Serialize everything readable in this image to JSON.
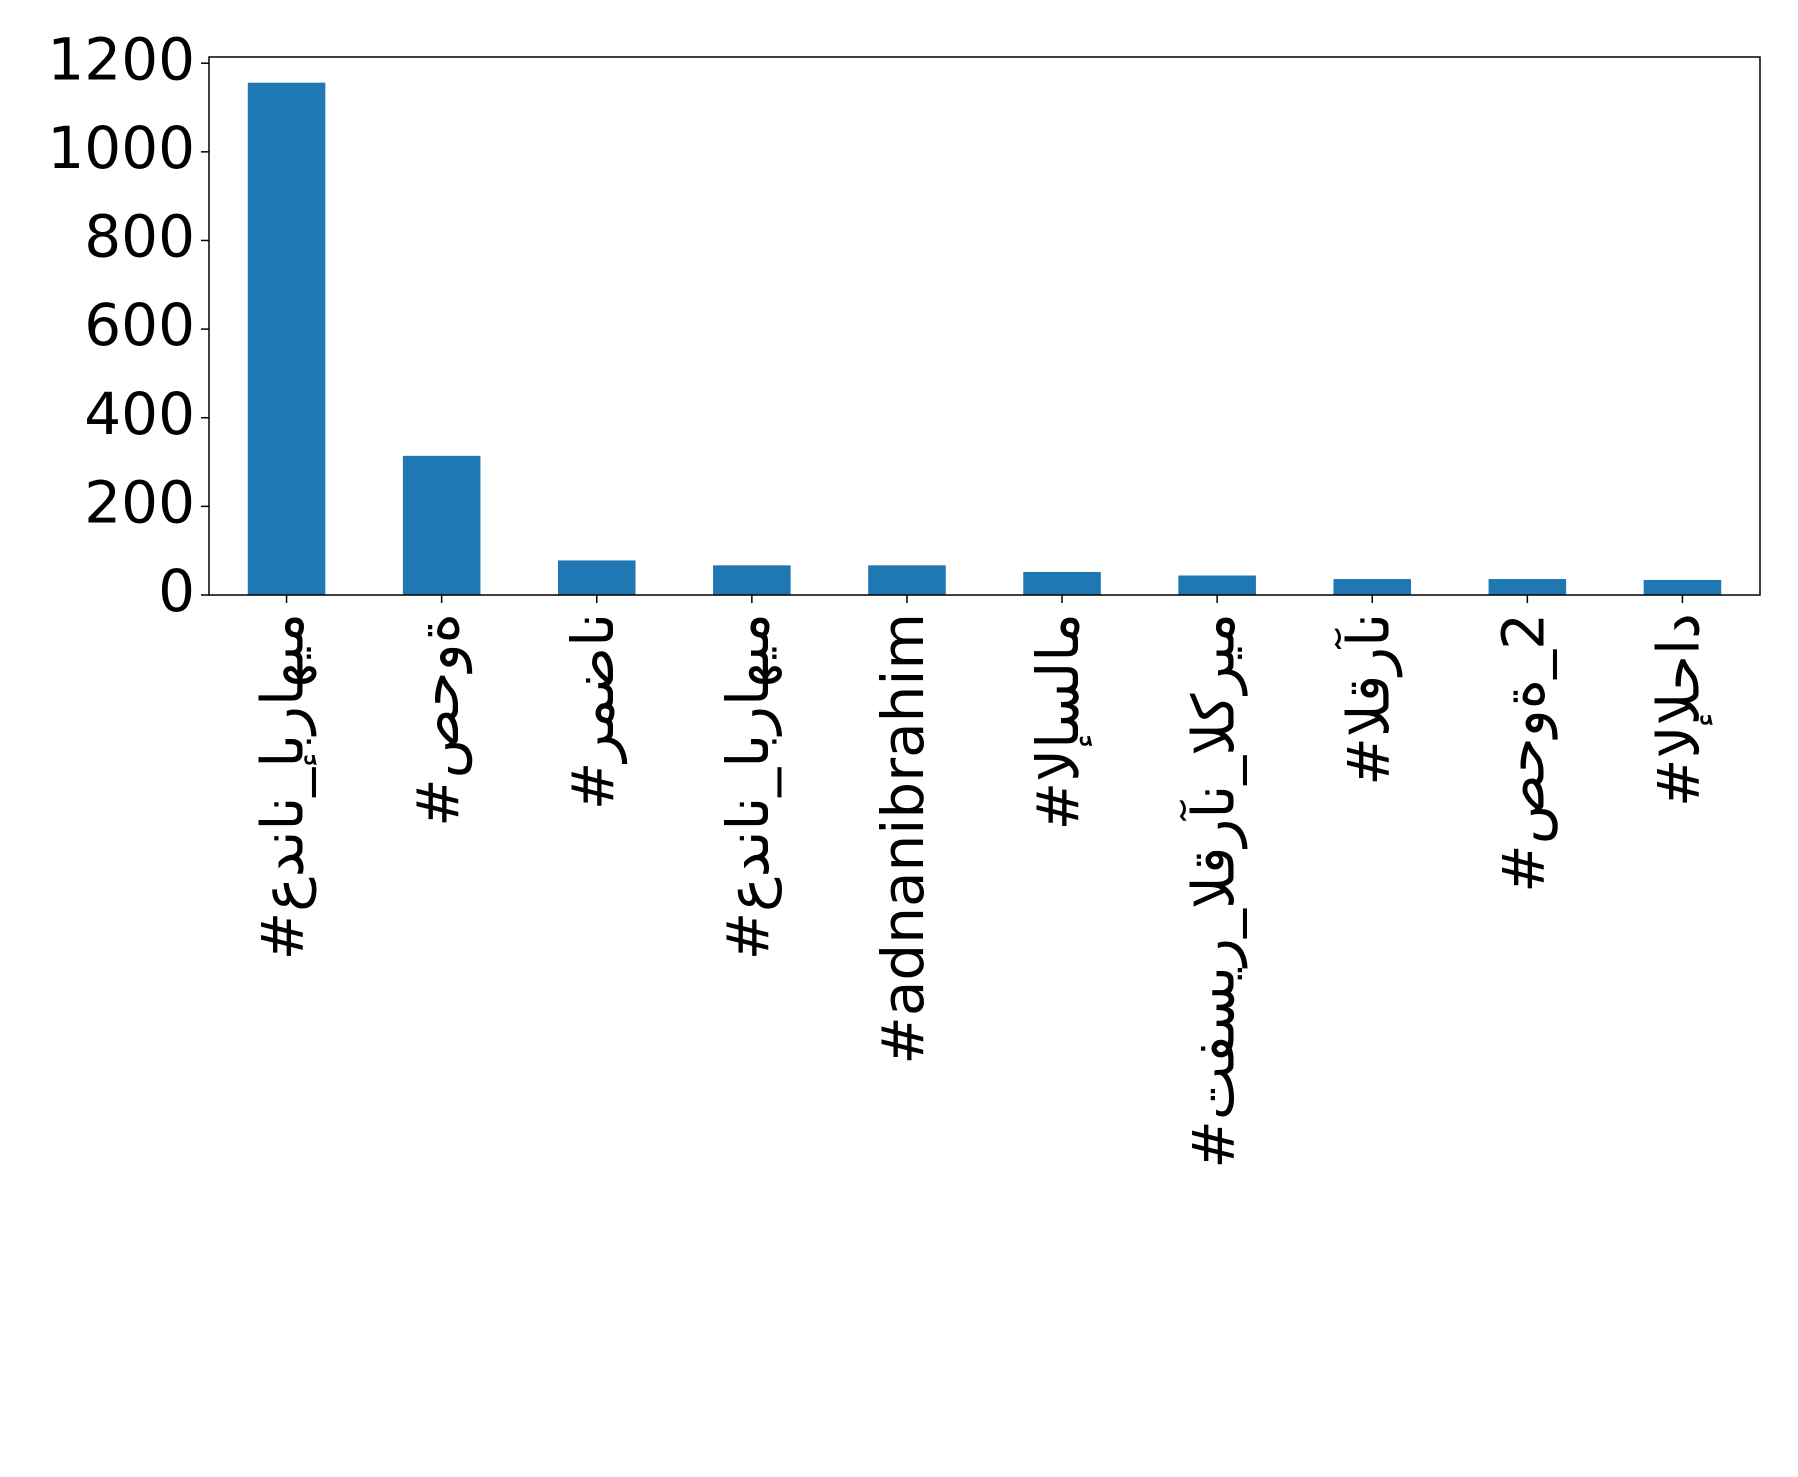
{
  "chart_data": {
    "type": "bar",
    "categories": [
      "#عدنان_إبراهيم",
      "#صحوة",
      "#رمضان",
      "#عدنان_ابراهيم",
      "#adnanibrahim",
      "#الإسلام",
      "#تفسير_القرآن_الكريم",
      "#القرآن",
      "#صحوة_2",
      "#الإلحاد"
    ],
    "values": [
      1156,
      314,
      78,
      67,
      67,
      52,
      44,
      36,
      36,
      34
    ],
    "color": "#1f77b4",
    "ylim": [
      0,
      1214
    ],
    "yticks": [
      0,
      200,
      400,
      600,
      800,
      1000,
      1200
    ]
  }
}
